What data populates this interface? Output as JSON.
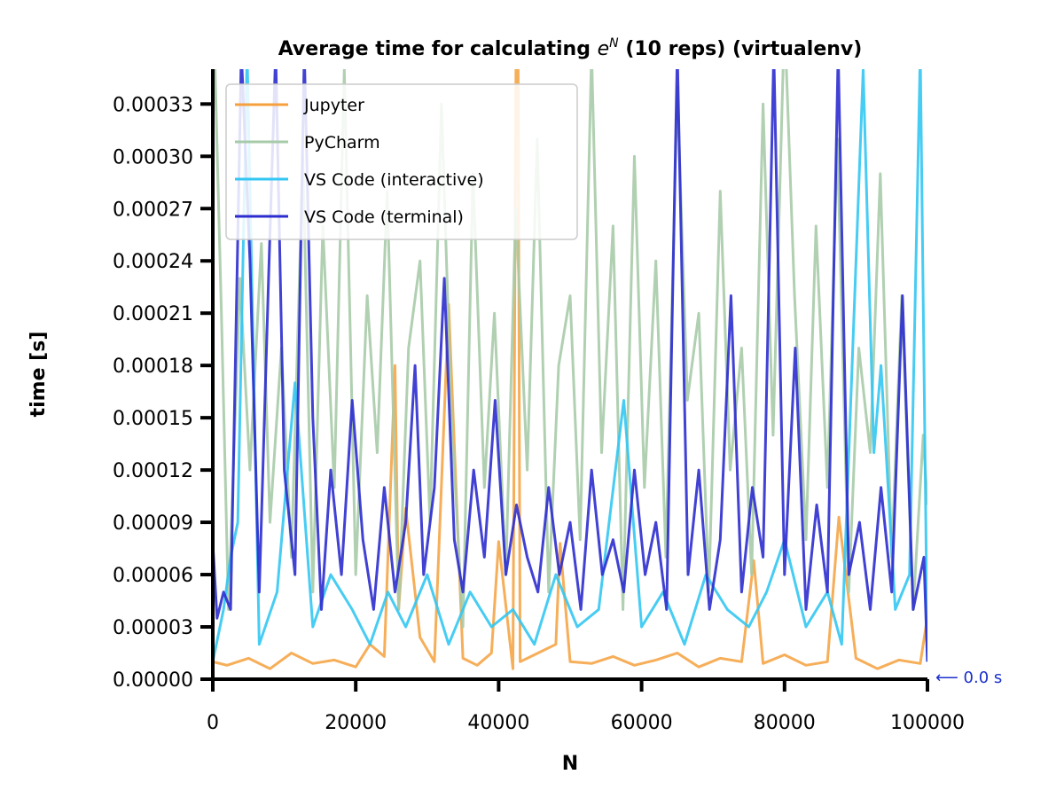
{
  "chart_data": {
    "type": "line",
    "title_prefix": "Average time for calculating ",
    "title_base": "e",
    "title_sup": "N",
    "title_suffix": " (10 reps) (virtualenv)",
    "xlabel": "N",
    "ylabel": "time [s]",
    "xlim": [
      0,
      100000
    ],
    "ylim": [
      0,
      0.00035
    ],
    "x_ticks": [
      0,
      20000,
      40000,
      60000,
      80000,
      100000
    ],
    "x_tick_labels": [
      "0",
      "20000",
      "40000",
      "60000",
      "80000",
      "100000"
    ],
    "y_ticks": [
      0,
      3e-05,
      6e-05,
      9e-05,
      0.00012,
      0.00015,
      0.00018,
      0.00021,
      0.00024,
      0.00027,
      0.0003,
      0.00033
    ],
    "y_tick_labels": [
      "0.00000",
      "0.00003",
      "0.00006",
      "0.00009",
      "0.00012",
      "0.00015",
      "0.00018",
      "0.00021",
      "0.00024",
      "0.00027",
      "0.00030",
      "0.00033"
    ],
    "grid": false,
    "legend_position": "top-left",
    "series": [
      {
        "name": "Jupyter",
        "color": "#f5a03c",
        "x": [
          0,
          2000,
          5000,
          8000,
          11000,
          14000,
          17000,
          20000,
          22000,
          24000,
          25500,
          26000,
          27000,
          29000,
          31000,
          33000,
          35000,
          37000,
          39000,
          40000,
          42000,
          42600,
          43000,
          45000,
          48000,
          48600,
          50000,
          53000,
          56000,
          59000,
          62000,
          65000,
          68000,
          71000,
          74000,
          75700,
          77000,
          80000,
          83000,
          86000,
          87600,
          90000,
          93000,
          96000,
          99000,
          100000
        ],
        "values": [
          1e-05,
          8e-06,
          1.2e-05,
          6e-06,
          1.5e-05,
          9e-06,
          1.1e-05,
          7e-06,
          2e-05,
          1.3e-05,
          0.00018,
          4e-05,
          9.8e-05,
          2.4e-05,
          1e-05,
          0.000215,
          1.2e-05,
          8e-06,
          1.5e-05,
          7.9e-05,
          6e-06,
          0.0005,
          1e-05,
          1.4e-05,
          2e-05,
          7.8e-05,
          1e-05,
          9e-06,
          1.3e-05,
          8e-06,
          1.1e-05,
          1.5e-05,
          7e-06,
          1.2e-05,
          1e-05,
          6.8e-05,
          9e-06,
          1.4e-05,
          8e-06,
          1e-05,
          9.3e-05,
          1.2e-05,
          6e-06,
          1.1e-05,
          9e-06,
          3.6e-05
        ]
      },
      {
        "name": "PyCharm",
        "color": "#a7cba9",
        "x": [
          0,
          1200,
          2200,
          3800,
          5200,
          6800,
          8000,
          9600,
          11000,
          12600,
          14000,
          15400,
          17000,
          18400,
          20000,
          21600,
          23000,
          24400,
          26000,
          27400,
          29000,
          30400,
          32000,
          33400,
          35000,
          36400,
          38000,
          39400,
          41000,
          42400,
          44000,
          45400,
          47000,
          48400,
          50000,
          51400,
          53000,
          54400,
          56000,
          57400,
          59000,
          60400,
          62000,
          63400,
          65000,
          66400,
          68000,
          69400,
          71000,
          72400,
          74000,
          75400,
          77000,
          78400,
          80000,
          81400,
          83000,
          84400,
          86000,
          87400,
          89000,
          90400,
          92000,
          93400,
          95000,
          96400,
          98000,
          99400,
          100000
        ],
        "values": [
          0.0004,
          0.00021,
          4e-05,
          0.00023,
          0.00012,
          0.00025,
          9e-05,
          0.00019,
          7e-05,
          0.0003,
          5e-05,
          0.00026,
          0.00011,
          0.00035,
          6e-05,
          0.00022,
          0.00013,
          0.00028,
          4e-05,
          0.00019,
          0.00024,
          9e-05,
          0.00033,
          0.00015,
          3e-05,
          0.00029,
          0.00011,
          0.00021,
          6e-05,
          0.00027,
          0.00012,
          0.00031,
          5e-05,
          0.00018,
          0.00022,
          8e-05,
          0.00036,
          0.00013,
          0.00026,
          4e-05,
          0.0003,
          0.00011,
          0.00024,
          7e-05,
          0.00034,
          0.00016,
          0.00021,
          5e-05,
          0.00028,
          0.00012,
          0.00019,
          6e-05,
          0.00033,
          0.00014,
          0.00038,
          0.00022,
          8e-05,
          0.00026,
          0.00011,
          0.00031,
          5e-05,
          0.00019,
          0.00013,
          0.00029,
          7e-05,
          0.00022,
          4e-05,
          0.00014,
          0.0001
        ]
      },
      {
        "name": "VS Code (interactive)",
        "color": "#33c6f2",
        "x": [
          0,
          1500,
          2500,
          3500,
          4800,
          6500,
          9000,
          11500,
          14000,
          16500,
          19500,
          22000,
          24500,
          27000,
          30000,
          33000,
          36000,
          39000,
          42000,
          45000,
          48000,
          51000,
          54000,
          57500,
          60000,
          63000,
          66000,
          69000,
          72000,
          75000,
          77500,
          80000,
          83000,
          86000,
          88000,
          91000,
          92500,
          93500,
          95500,
          97500,
          99000,
          100000
        ],
        "values": [
          1e-05,
          4e-05,
          7e-05,
          9e-05,
          0.00036,
          2e-05,
          5e-05,
          0.00017,
          3e-05,
          6e-05,
          4e-05,
          2e-05,
          5e-05,
          3e-05,
          6e-05,
          2e-05,
          5e-05,
          3e-05,
          4e-05,
          2e-05,
          6e-05,
          3e-05,
          4e-05,
          0.00016,
          3e-05,
          5e-05,
          2e-05,
          6e-05,
          4e-05,
          3e-05,
          5e-05,
          8e-05,
          3e-05,
          5e-05,
          2e-05,
          0.00035,
          0.00013,
          0.00018,
          4e-05,
          6e-05,
          0.00036,
          1e-05
        ]
      },
      {
        "name": "VS Code (terminal)",
        "color": "#2c2ccf",
        "x": [
          0,
          600,
          1500,
          2500,
          4000,
          5200,
          6500,
          7800,
          8800,
          10000,
          11500,
          12800,
          14000,
          15200,
          16500,
          18000,
          19500,
          21000,
          22500,
          24000,
          25500,
          27000,
          28300,
          29500,
          31000,
          32400,
          33800,
          35000,
          36500,
          38000,
          39500,
          41000,
          42500,
          44000,
          45500,
          47000,
          48500,
          50000,
          51500,
          53000,
          54500,
          56000,
          57500,
          59000,
          60500,
          62000,
          63500,
          65000,
          66500,
          68000,
          69500,
          71000,
          72500,
          74000,
          75500,
          77000,
          78500,
          80000,
          81500,
          83000,
          84500,
          86000,
          87500,
          89000,
          90500,
          92000,
          93500,
          95000,
          96500,
          98000,
          99500,
          100000
        ],
        "values": [
          7.8e-05,
          3.5e-05,
          5e-05,
          4e-05,
          0.00036,
          0.00024,
          5e-05,
          0.00023,
          0.00036,
          0.00012,
          6e-05,
          0.00036,
          0.00015,
          4e-05,
          0.00012,
          6e-05,
          0.00016,
          8e-05,
          4e-05,
          0.00011,
          5e-05,
          9e-05,
          0.00018,
          6e-05,
          0.00011,
          0.00023,
          8e-05,
          5e-05,
          0.00012,
          7e-05,
          0.00016,
          6e-05,
          0.0001,
          7e-05,
          5e-05,
          0.00011,
          6e-05,
          9e-05,
          4e-05,
          0.00012,
          6e-05,
          8e-05,
          5e-05,
          0.00012,
          6e-05,
          9e-05,
          4e-05,
          0.00036,
          6e-05,
          0.00012,
          4e-05,
          8e-05,
          0.00022,
          5e-05,
          0.00011,
          7e-05,
          0.00036,
          6e-05,
          0.00019,
          4e-05,
          0.0001,
          5e-05,
          0.00036,
          6e-05,
          9e-05,
          4e-05,
          0.00011,
          5e-05,
          0.00022,
          4e-05,
          7e-05,
          1e-05
        ]
      }
    ],
    "annotation": "⟵ 0.0 s",
    "annotation_color": "#1a2fc9"
  }
}
